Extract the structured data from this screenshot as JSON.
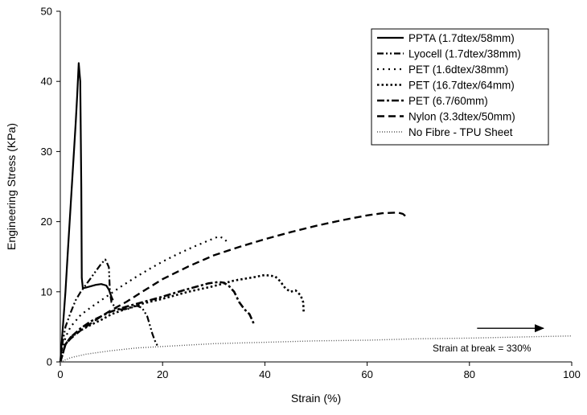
{
  "chart_data": {
    "type": "line",
    "xlabel": "Strain (%)",
    "ylabel": "Engineering Stress (KPa)",
    "xlim": [
      0,
      100
    ],
    "ylim": [
      0,
      50
    ],
    "xticks": [
      0,
      20,
      40,
      60,
      80,
      100
    ],
    "yticks": [
      0,
      10,
      20,
      30,
      40,
      50
    ],
    "grid": false,
    "legend_position": "top-right",
    "series": [
      {
        "name": "PPTA (1.7dtex/58mm)",
        "style": "solid",
        "color": "#000000",
        "points": [
          [
            0,
            0
          ],
          [
            0.5,
            5
          ],
          [
            1,
            10
          ],
          [
            1.5,
            16
          ],
          [
            2,
            22
          ],
          [
            2.5,
            28
          ],
          [
            3,
            34
          ],
          [
            3.3,
            38
          ],
          [
            3.6,
            42.6
          ],
          [
            3.9,
            40
          ],
          [
            4.1,
            25
          ],
          [
            4.2,
            12
          ],
          [
            4.4,
            10.5
          ],
          [
            5,
            10.6
          ],
          [
            6,
            10.8
          ],
          [
            7,
            11
          ],
          [
            8,
            11.1
          ],
          [
            9,
            10.9
          ],
          [
            9.5,
            10.3
          ],
          [
            10,
            9.3
          ],
          [
            10.3,
            8.8
          ]
        ]
      },
      {
        "name": "Lyocell (1.7dtex/38mm)",
        "style": "dashdotdot",
        "color": "#000000",
        "points": [
          [
            0,
            0
          ],
          [
            0.5,
            3
          ],
          [
            1,
            5
          ],
          [
            2,
            7
          ],
          [
            3,
            8.8
          ],
          [
            4,
            10
          ],
          [
            5,
            11
          ],
          [
            6,
            12
          ],
          [
            7,
            13
          ],
          [
            8,
            14
          ],
          [
            8.8,
            14.6
          ],
          [
            9.2,
            14
          ],
          [
            9.5,
            13.5
          ],
          [
            9.7,
            10
          ],
          [
            10,
            8.5
          ],
          [
            11,
            7.5
          ],
          [
            13,
            7.5
          ],
          [
            15,
            8
          ],
          [
            16,
            7.7
          ],
          [
            17,
            6.5
          ],
          [
            18,
            4
          ],
          [
            18.5,
            3
          ],
          [
            19,
            2.3
          ]
        ]
      },
      {
        "name": "PET (1.6dtex/38mm)",
        "style": "dotted",
        "color": "#000000",
        "points": [
          [
            0,
            0
          ],
          [
            1,
            3.5
          ],
          [
            2,
            5
          ],
          [
            4,
            6.7
          ],
          [
            6,
            7.8
          ],
          [
            8,
            8.8
          ],
          [
            10,
            9.8
          ],
          [
            12,
            10.8
          ],
          [
            15,
            12.2
          ],
          [
            18,
            13.5
          ],
          [
            20,
            14.3
          ],
          [
            23,
            15.4
          ],
          [
            26,
            16.4
          ],
          [
            29,
            17.3
          ],
          [
            31,
            17.9
          ],
          [
            32,
            17.6
          ],
          [
            33,
            16.8
          ]
        ]
      },
      {
        "name": "PET (16.7dtex/64mm)",
        "style": "dotted-dense",
        "color": "#000000",
        "points": [
          [
            0,
            0
          ],
          [
            1,
            2.5
          ],
          [
            2,
            3.5
          ],
          [
            4,
            4.5
          ],
          [
            6,
            5.3
          ],
          [
            8,
            6
          ],
          [
            10,
            6.8
          ],
          [
            13,
            7.6
          ],
          [
            16,
            8.3
          ],
          [
            20,
            9
          ],
          [
            25,
            10
          ],
          [
            30,
            10.8
          ],
          [
            34,
            11.6
          ],
          [
            38,
            12.1
          ],
          [
            40,
            12.4
          ],
          [
            42,
            12.2
          ],
          [
            43,
            11.5
          ],
          [
            44,
            10.5
          ],
          [
            45,
            10
          ],
          [
            46,
            10.2
          ],
          [
            47,
            9.5
          ],
          [
            47.5,
            8.5
          ],
          [
            47.6,
            7
          ]
        ]
      },
      {
        "name": "PET (6.7/60mm)",
        "style": "dashdot",
        "color": "#000000",
        "points": [
          [
            0,
            0
          ],
          [
            1,
            2.5
          ],
          [
            2,
            3.5
          ],
          [
            4,
            4.8
          ],
          [
            6,
            5.8
          ],
          [
            8,
            6.5
          ],
          [
            10,
            7.2
          ],
          [
            13,
            7.9
          ],
          [
            16,
            8.5
          ],
          [
            20,
            9.3
          ],
          [
            24,
            10.2
          ],
          [
            27,
            10.8
          ],
          [
            29,
            11.2
          ],
          [
            31,
            11.4
          ],
          [
            32,
            11.3
          ],
          [
            33,
            10.8
          ],
          [
            34,
            10
          ],
          [
            35,
            8.5
          ],
          [
            36,
            7.5
          ],
          [
            37,
            6.8
          ],
          [
            37.8,
            5.5
          ]
        ]
      },
      {
        "name": "Nylon (3.3dtex/50mm)",
        "style": "dashed",
        "color": "#000000",
        "points": [
          [
            0,
            0
          ],
          [
            1,
            2.5
          ],
          [
            2,
            3.3
          ],
          [
            4,
            4.5
          ],
          [
            6,
            5.5
          ],
          [
            8,
            6.5
          ],
          [
            10,
            7.4
          ],
          [
            13,
            8.6
          ],
          [
            16,
            10
          ],
          [
            20,
            11.8
          ],
          [
            25,
            13.6
          ],
          [
            30,
            15.2
          ],
          [
            35,
            16.4
          ],
          [
            40,
            17.5
          ],
          [
            45,
            18.5
          ],
          [
            50,
            19.4
          ],
          [
            55,
            20.2
          ],
          [
            60,
            20.9
          ],
          [
            63,
            21.2
          ],
          [
            66,
            21.3
          ],
          [
            67,
            21.1
          ],
          [
            67.8,
            20.6
          ]
        ]
      },
      {
        "name": "No Fibre - TPU Sheet",
        "style": "fine-dotted",
        "color": "#555555",
        "points": [
          [
            0,
            0
          ],
          [
            2,
            0.6
          ],
          [
            5,
            1.1
          ],
          [
            10,
            1.6
          ],
          [
            15,
            2
          ],
          [
            20,
            2.2
          ],
          [
            30,
            2.6
          ],
          [
            40,
            2.8
          ],
          [
            50,
            3
          ],
          [
            60,
            3.1
          ],
          [
            70,
            3.3
          ],
          [
            80,
            3.4
          ],
          [
            90,
            3.55
          ],
          [
            100,
            3.7
          ]
        ]
      }
    ],
    "annotation": {
      "text": "Strain at break = 330%",
      "arrow_from": [
        81.5,
        4.8
      ],
      "arrow_to": [
        94.5,
        4.8
      ]
    }
  }
}
